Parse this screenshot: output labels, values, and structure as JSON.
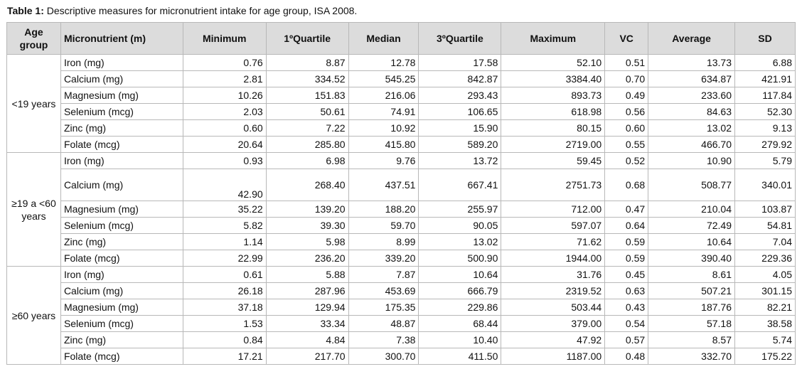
{
  "caption": {
    "label": "Table 1:",
    "text": " Descriptive measures for micronutrient intake for age group, ISA 2008."
  },
  "header": [
    "Age group",
    "Micronutrient (m)",
    "Minimum",
    "1ºQuartile",
    "Median",
    "3ºQuartile",
    "Maximum",
    "VC",
    "Average",
    "SD"
  ],
  "groups": [
    {
      "label": "<19 years",
      "rows": [
        [
          "Iron (mg)",
          "0.76",
          "8.87",
          "12.78",
          "17.58",
          "52.10",
          "0.51",
          "13.73",
          "6.88"
        ],
        [
          "Calcium (mg)",
          "2.81",
          "334.52",
          "545.25",
          "842.87",
          "3384.40",
          "0.70",
          "634.87",
          "421.91"
        ],
        [
          "Magnesium (mg)",
          "10.26",
          "151.83",
          "216.06",
          "293.43",
          "893.73",
          "0.49",
          "233.60",
          "117.84"
        ],
        [
          "Selenium (mcg)",
          "2.03",
          "50.61",
          "74.91",
          "106.65",
          "618.98",
          "0.56",
          "84.63",
          "52.30"
        ],
        [
          "Zinc (mg)",
          "0.60",
          "7.22",
          "10.92",
          "15.90",
          "80.15",
          "0.60",
          "13.02",
          "9.13"
        ],
        [
          "Folate (mcg)",
          "20.64",
          "285.80",
          "415.80",
          "589.20",
          "2719.00",
          "0.55",
          "466.70",
          "279.92"
        ]
      ]
    },
    {
      "label": "≥19 a <60 years",
      "rows": [
        [
          "Iron (mg)",
          "0.93",
          "6.98",
          "9.76",
          "13.72",
          "59.45",
          "0.52",
          "10.90",
          "5.79"
        ],
        [
          "Calcium (mg)",
          "42.90",
          "268.40",
          "437.51",
          "667.41",
          "2751.73",
          "0.68",
          "508.77",
          "340.01"
        ],
        [
          "Magnesium (mg)",
          "35.22",
          "139.20",
          "188.20",
          "255.97",
          "712.00",
          "0.47",
          "210.04",
          "103.87"
        ],
        [
          "Selenium (mcg)",
          "5.82",
          "39.30",
          "59.70",
          "90.05",
          "597.07",
          "0.64",
          "72.49",
          "54.81"
        ],
        [
          "Zinc (mg)",
          "1.14",
          "5.98",
          "8.99",
          "13.02",
          "71.62",
          "0.59",
          "10.64",
          "7.04"
        ],
        [
          "Folate (mcg)",
          "22.99",
          "236.20",
          "339.20",
          "500.90",
          "1944.00",
          "0.59",
          "390.40",
          "229.36"
        ]
      ]
    },
    {
      "label": "≥60 years",
      "rows": [
        [
          "Iron (mg)",
          "0.61",
          "5.88",
          "7.87",
          "10.64",
          "31.76",
          "0.45",
          "8.61",
          "4.05"
        ],
        [
          "Calcium (mg)",
          "26.18",
          "287.96",
          "453.69",
          "666.79",
          "2319.52",
          "0.63",
          "507.21",
          "301.15"
        ],
        [
          "Magnesium (mg)",
          "37.18",
          "129.94",
          "175.35",
          "229.86",
          "503.44",
          "0.43",
          "187.76",
          "82.21"
        ],
        [
          "Selenium (mcg)",
          "1.53",
          "33.34",
          "48.87",
          "68.44",
          "379.00",
          "0.54",
          "57.18",
          "38.58"
        ],
        [
          "Zinc (mg)",
          "0.84",
          "4.84",
          "7.38",
          "10.40",
          "47.92",
          "0.57",
          "8.57",
          "5.74"
        ],
        [
          "Folate (mcg)",
          "17.21",
          "217.70",
          "300.70",
          "411.50",
          "1187.00",
          "0.48",
          "332.70",
          "175.22"
        ]
      ]
    }
  ]
}
